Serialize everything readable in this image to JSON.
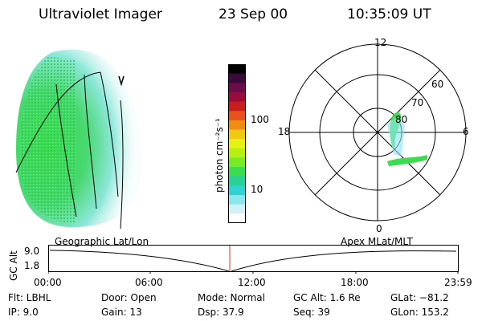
{
  "header": {
    "instrument": "Ultraviolet Imager",
    "date": "23 Sep 00",
    "time": "10:35:09 UT"
  },
  "colorbar": {
    "unit_label": "photon cm⁻²s⁻¹",
    "ticks": [
      "100",
      "10"
    ],
    "colors": [
      "#000000",
      "#3a0a3a",
      "#6a0d4a",
      "#9a0d3a",
      "#c81e1e",
      "#e8501e",
      "#f08c14",
      "#f0c814",
      "#e6f014",
      "#b4f014",
      "#78eb28",
      "#3cdc50",
      "#28d296",
      "#32d2d2",
      "#8ce6ee",
      "#d2f0f5",
      "#ffffff"
    ]
  },
  "polar": {
    "labels": {
      "top": "12",
      "bottom": "0",
      "left": "18",
      "right": "6",
      "lat60": "60",
      "lat70": "70",
      "lat80": "80"
    }
  },
  "timeline": {
    "left_label": "Geographic Lat/Lon",
    "right_label": "Apex MLat/MLT",
    "axis_label": "GC Alt",
    "y_ticks": [
      "9.0",
      "1.8"
    ],
    "x_ticks": [
      "00:00",
      "06:00",
      "12:00",
      "18:00",
      "23:59"
    ],
    "marker_color": "#c83c3c"
  },
  "status": {
    "row1": {
      "flt": "Flt: LBHL",
      "door": "Door: Open",
      "mode": "Mode: Normal",
      "gcalt": "GC Alt: 1.6 Re",
      "glat": "GLat: −81.2"
    },
    "row2": {
      "ip": "IP:  9.0",
      "gain": "Gain: 13",
      "dsp": "Dsp:    37.9",
      "seq": "Seq: 39",
      "glon": "GLon: 153.2"
    }
  }
}
